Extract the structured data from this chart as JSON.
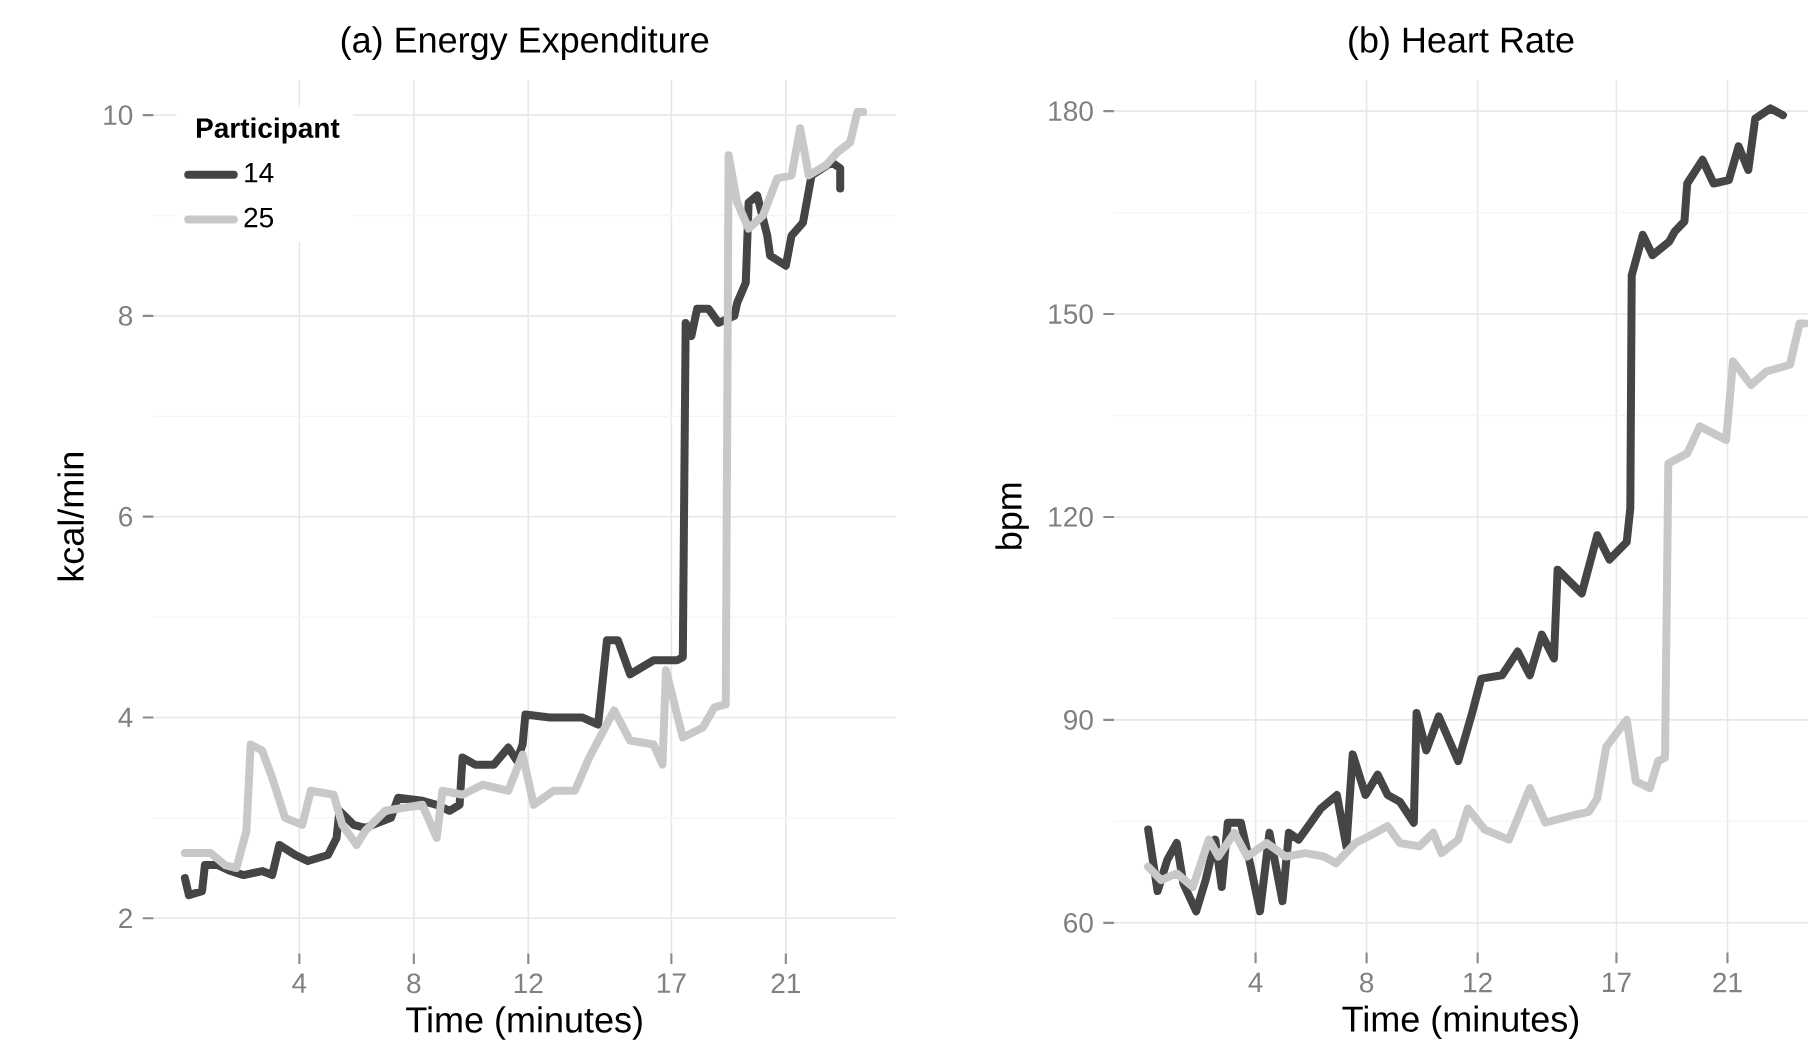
{
  "chart_data": [
    {
      "type": "line",
      "title": "(a) Energy Expenditure",
      "xlabel": "Time (minutes)",
      "ylabel": "kcal/min",
      "legend_title": "Participant",
      "legend": "top left",
      "grid": true,
      "line_style": "solid",
      "xlim": [
        -1.1,
        24.85
      ],
      "xticks": [
        4,
        8,
        12,
        17,
        21
      ],
      "ylim": [
        1.65,
        10.35
      ],
      "yticks": [
        2,
        4,
        6,
        8,
        10
      ],
      "series": [
        {
          "name": "14",
          "color": "#454545",
          "x": [
            0,
            0.14,
            0.6,
            0.7,
            1.15,
            1.6,
            2.05,
            2.7,
            3.05,
            3.3,
            3.85,
            4.3,
            5.0,
            5.3,
            5.4,
            5.9,
            6.3,
            7.2,
            7.45,
            8.3,
            8.8,
            9.25,
            9.6,
            9.7,
            10.15,
            10.8,
            11.3,
            11.6,
            11.8,
            11.9,
            12.75,
            13.88,
            14.44,
            14.75,
            15.13,
            15.56,
            16.38,
            17.2,
            17.4,
            17.5,
            17.7,
            17.9,
            18.3,
            18.65,
            19.2,
            19.3,
            19.6,
            19.7,
            20.0,
            20.35,
            20.45,
            21.0,
            21.2,
            21.6,
            21.9,
            22.6,
            22.9,
            22.9
          ],
          "values": [
            2.4,
            2.23,
            2.27,
            2.53,
            2.53,
            2.47,
            2.43,
            2.47,
            2.43,
            2.73,
            2.63,
            2.57,
            2.63,
            2.8,
            3.07,
            2.93,
            2.9,
            3.0,
            3.2,
            3.17,
            3.13,
            3.07,
            3.13,
            3.6,
            3.53,
            3.53,
            3.7,
            3.57,
            3.73,
            4.03,
            4.0,
            4.0,
            3.93,
            4.77,
            4.77,
            4.43,
            4.57,
            4.57,
            4.6,
            7.93,
            7.8,
            8.07,
            8.07,
            7.93,
            8.0,
            8.13,
            8.33,
            9.13,
            9.2,
            8.8,
            8.6,
            8.5,
            8.8,
            8.93,
            9.4,
            9.53,
            9.47,
            9.27
          ]
        },
        {
          "name": "25",
          "color": "#c8c8c8",
          "x": [
            0,
            0.9,
            1.4,
            1.8,
            2.15,
            2.3,
            2.7,
            3.05,
            3.5,
            4.1,
            4.4,
            5.2,
            5.5,
            6.0,
            6.3,
            7.0,
            7.65,
            8.3,
            8.8,
            9.0,
            9.7,
            10.4,
            11.3,
            11.8,
            12.19,
            12.88,
            13.63,
            14.13,
            15.0,
            15.56,
            16.38,
            16.69,
            16.81,
            17.4,
            18.1,
            18.5,
            18.9,
            19.0,
            19.3,
            19.7,
            20.2,
            20.7,
            21.2,
            21.5,
            21.8,
            22.4,
            22.8,
            23.25,
            23.5,
            23.7
          ],
          "values": [
            2.65,
            2.65,
            2.53,
            2.5,
            2.87,
            3.73,
            3.67,
            3.4,
            3.0,
            2.93,
            3.27,
            3.23,
            2.93,
            2.73,
            2.87,
            3.07,
            3.1,
            3.13,
            2.8,
            3.27,
            3.23,
            3.33,
            3.27,
            3.63,
            3.13,
            3.27,
            3.27,
            3.6,
            4.07,
            3.77,
            3.73,
            3.53,
            4.47,
            3.8,
            3.9,
            4.1,
            4.13,
            9.6,
            9.13,
            8.87,
            9.0,
            9.37,
            9.4,
            9.87,
            9.4,
            9.5,
            9.63,
            9.73,
            10.03,
            10.03
          ]
        }
      ]
    },
    {
      "type": "line",
      "title": "(b) Heart Rate",
      "xlabel": "Time (minutes)",
      "ylabel": "bpm",
      "grid": true,
      "line_style": "solid",
      "xlim": [
        -1.1,
        23.9
      ],
      "xticks": [
        4,
        8,
        12,
        17,
        21
      ],
      "ylim": [
        55.6,
        184.6
      ],
      "yticks": [
        60,
        90,
        120,
        150,
        180
      ],
      "series": [
        {
          "color": "#454545",
          "x": [
            0.13,
            0.47,
            0.82,
            1.16,
            1.4,
            1.86,
            2.2,
            2.55,
            2.78,
            3.0,
            3.47,
            3.8,
            4.16,
            4.5,
            4.97,
            5.2,
            5.55,
            5.9,
            6.35,
            6.93,
            7.27,
            7.5,
            7.96,
            8.4,
            8.76,
            9.2,
            9.7,
            9.8,
            10.15,
            10.6,
            11.3,
            11.8,
            12.13,
            12.88,
            13.44,
            13.88,
            14.31,
            14.75,
            14.88,
            15.75,
            16.31,
            16.75,
            17.37,
            17.5,
            17.55,
            17.95,
            18.3,
            18.9,
            19.1,
            19.45,
            19.55,
            20.1,
            20.5,
            21.05,
            21.4,
            21.75,
            22.0,
            22.55,
            23.0
          ],
          "values": [
            73.8,
            64.7,
            69.3,
            71.8,
            65.8,
            61.7,
            66.3,
            72.3,
            65.3,
            74.8,
            74.8,
            68.8,
            61.7,
            73.3,
            63.2,
            73.3,
            72.3,
            74.3,
            76.9,
            78.9,
            71.3,
            84.9,
            78.9,
            81.9,
            78.9,
            77.9,
            74.8,
            91.0,
            85.5,
            90.5,
            83.9,
            91.0,
            96.1,
            96.6,
            100.1,
            96.6,
            102.6,
            99.1,
            112.2,
            108.7,
            117.3,
            113.7,
            116.3,
            121.3,
            155.7,
            161.7,
            158.7,
            160.7,
            162.2,
            163.7,
            169.3,
            172.8,
            169.3,
            169.8,
            174.8,
            171.3,
            178.9,
            180.4,
            179.4
          ]
        },
        {
          "color": "#c8c8c8",
          "x": [
            0.13,
            0.6,
            1.16,
            1.74,
            2.32,
            2.66,
            3.24,
            3.7,
            4.4,
            5.08,
            5.8,
            6.46,
            6.9,
            7.6,
            8.08,
            8.76,
            9.2,
            9.9,
            10.4,
            10.7,
            11.3,
            11.65,
            12.25,
            13.13,
            13.88,
            14.44,
            15.44,
            16.0,
            16.31,
            16.63,
            17.37,
            17.7,
            18.2,
            18.5,
            18.75,
            18.87,
            19.55,
            20.0,
            20.95,
            21.2,
            21.85,
            22.4,
            23.25,
            23.6,
            23.8
          ],
          "values": [
            68.3,
            66.3,
            67.3,
            65.3,
            72.3,
            69.8,
            73.3,
            69.8,
            71.8,
            69.8,
            70.3,
            69.8,
            68.8,
            71.8,
            72.8,
            74.3,
            71.8,
            71.3,
            73.3,
            70.3,
            72.3,
            76.9,
            73.8,
            72.3,
            79.9,
            74.8,
            75.9,
            76.4,
            78.4,
            86.0,
            90.0,
            80.9,
            79.9,
            83.9,
            84.4,
            127.9,
            129.4,
            133.4,
            131.4,
            143.0,
            139.5,
            141.5,
            142.5,
            148.6,
            148.6
          ]
        }
      ]
    }
  ]
}
